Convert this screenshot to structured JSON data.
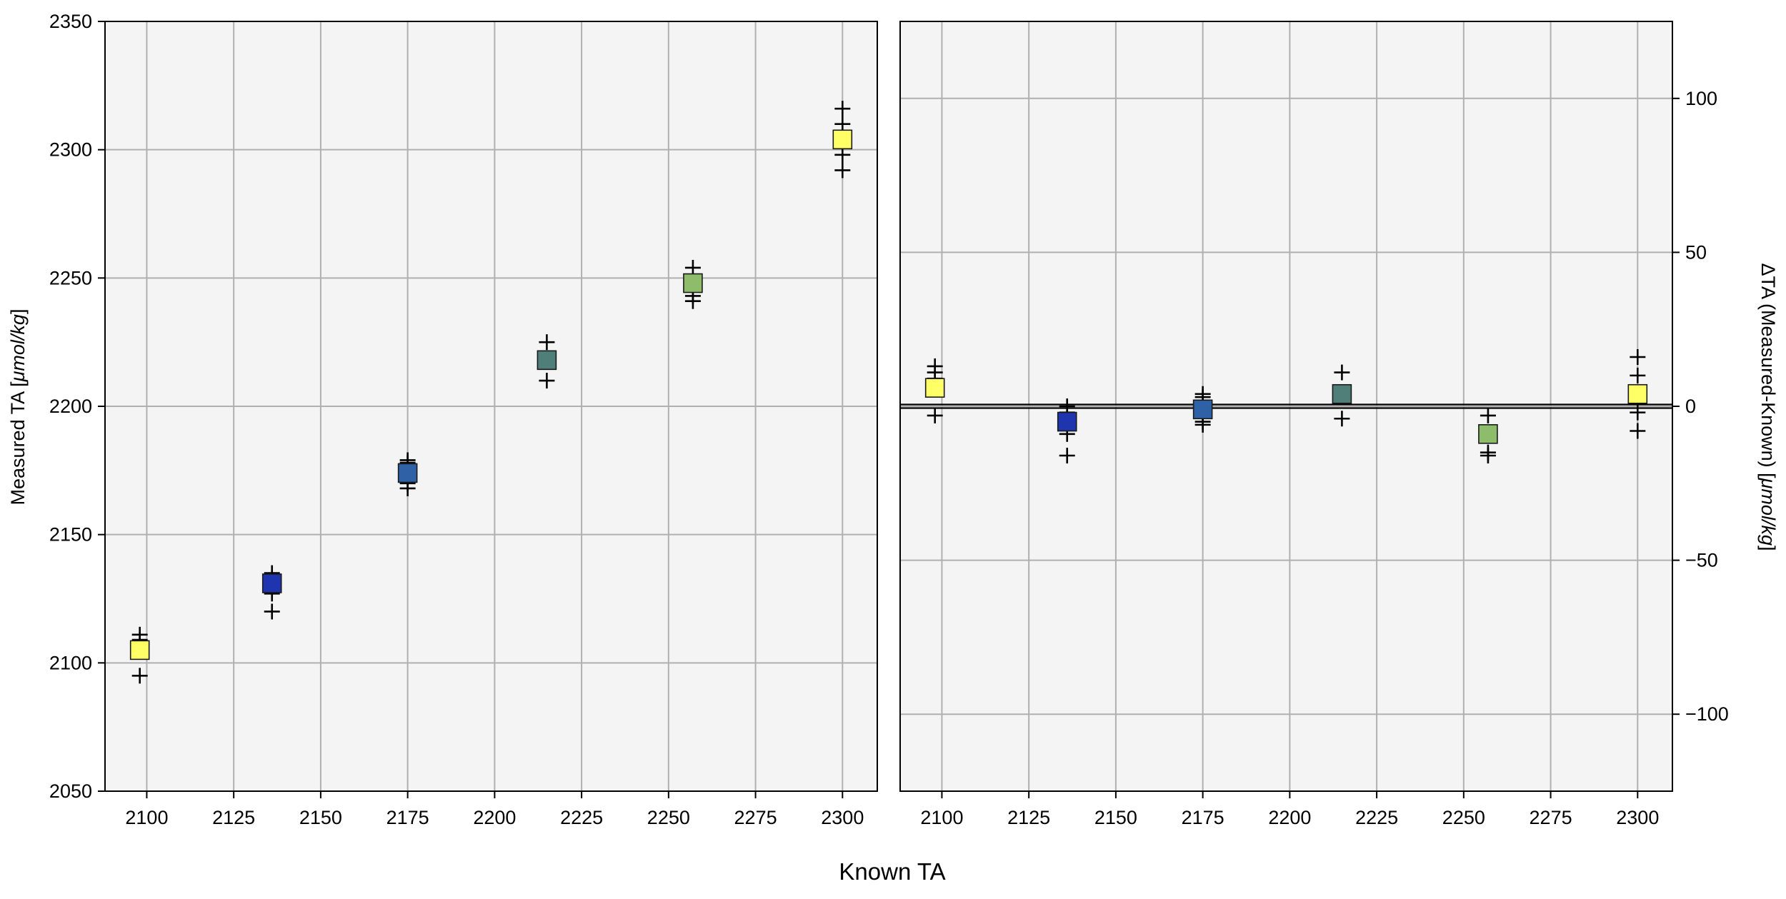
{
  "figure": {
    "xlabel": "Known TA"
  },
  "colors": {
    "panel_background": "#f4f4f4",
    "grid": "#b0b0b0",
    "frame": "#000000",
    "zero_line": "#000000"
  },
  "chart_data": [
    {
      "type": "scatter",
      "panel": "left",
      "title": "",
      "xlabel": "",
      "ylabel": "Measured TA [μmol/kg]",
      "ylabel_plain": "Measured TA [",
      "ylabel_unit": "μmol/kg",
      "ylabel_end": "]",
      "xlim": [
        2088,
        2310
      ],
      "ylim": [
        2050,
        2350
      ],
      "xticks": [
        2100,
        2125,
        2150,
        2175,
        2200,
        2225,
        2250,
        2275,
        2300
      ],
      "yticks": [
        2050,
        2100,
        2150,
        2200,
        2250,
        2300,
        2350
      ],
      "grid": true,
      "legend": "none",
      "series": [
        {
          "type": "mean",
          "marker": "square",
          "points": [
            {
              "x": 2098,
              "y": 2105,
              "color": "#ffff66"
            },
            {
              "x": 2136,
              "y": 2131,
              "color": "#1f35b0"
            },
            {
              "x": 2175,
              "y": 2174,
              "color": "#2e61a6"
            },
            {
              "x": 2215,
              "y": 2218,
              "color": "#4f7f78"
            },
            {
              "x": 2257,
              "y": 2248,
              "color": "#8dbc6a"
            },
            {
              "x": 2300,
              "y": 2304,
              "color": "#ffff66"
            }
          ]
        },
        {
          "type": "replicates",
          "marker": "plus",
          "points": [
            {
              "x": 2098,
              "y": 2111
            },
            {
              "x": 2098,
              "y": 2109
            },
            {
              "x": 2098,
              "y": 2107
            },
            {
              "x": 2098,
              "y": 2095
            },
            {
              "x": 2136,
              "y": 2135
            },
            {
              "x": 2136,
              "y": 2133
            },
            {
              "x": 2136,
              "y": 2127
            },
            {
              "x": 2136,
              "y": 2120
            },
            {
              "x": 2175,
              "y": 2179
            },
            {
              "x": 2175,
              "y": 2178
            },
            {
              "x": 2175,
              "y": 2170
            },
            {
              "x": 2175,
              "y": 2168
            },
            {
              "x": 2215,
              "y": 2225
            },
            {
              "x": 2215,
              "y": 2210
            },
            {
              "x": 2257,
              "y": 2254
            },
            {
              "x": 2257,
              "y": 2243
            },
            {
              "x": 2257,
              "y": 2241
            },
            {
              "x": 2300,
              "y": 2316
            },
            {
              "x": 2300,
              "y": 2310
            },
            {
              "x": 2300,
              "y": 2298
            },
            {
              "x": 2300,
              "y": 2292
            }
          ]
        }
      ]
    },
    {
      "type": "scatter",
      "panel": "right",
      "title": "",
      "xlabel": "",
      "ylabel": "ΔTA (Measured-Known) [μmol/kg]",
      "ylabel_plain": "ΔTA (Measured-Known) [",
      "ylabel_unit": "μmol/kg",
      "ylabel_end": "]",
      "xlim": [
        2088,
        2310
      ],
      "ylim": [
        -125,
        125
      ],
      "xticks": [
        2100,
        2125,
        2150,
        2175,
        2200,
        2225,
        2250,
        2275,
        2300
      ],
      "yticks": [
        -100,
        -50,
        0,
        50,
        100
      ],
      "ytick_labels": [
        "−100",
        "−50",
        "0",
        "50",
        "100"
      ],
      "hline": 0,
      "grid": true,
      "legend": "none",
      "series": [
        {
          "type": "mean",
          "marker": "square",
          "points": [
            {
              "x": 2098,
              "y": 6,
              "color": "#ffff66"
            },
            {
              "x": 2136,
              "y": -5,
              "color": "#1f35b0"
            },
            {
              "x": 2175,
              "y": -1,
              "color": "#2e61a6"
            },
            {
              "x": 2215,
              "y": 4,
              "color": "#4f7f78"
            },
            {
              "x": 2257,
              "y": -9,
              "color": "#8dbc6a"
            },
            {
              "x": 2300,
              "y": 4,
              "color": "#ffff66"
            }
          ]
        },
        {
          "type": "replicates",
          "marker": "plus",
          "points": [
            {
              "x": 2098,
              "y": 13
            },
            {
              "x": 2098,
              "y": 11
            },
            {
              "x": 2098,
              "y": 9
            },
            {
              "x": 2098,
              "y": -3
            },
            {
              "x": 2136,
              "y": 0
            },
            {
              "x": 2136,
              "y": -2
            },
            {
              "x": 2136,
              "y": -9
            },
            {
              "x": 2136,
              "y": -16
            },
            {
              "x": 2175,
              "y": 4
            },
            {
              "x": 2175,
              "y": 3
            },
            {
              "x": 2175,
              "y": -5
            },
            {
              "x": 2175,
              "y": -6
            },
            {
              "x": 2215,
              "y": 11
            },
            {
              "x": 2215,
              "y": -4
            },
            {
              "x": 2257,
              "y": -3
            },
            {
              "x": 2257,
              "y": -15
            },
            {
              "x": 2257,
              "y": -16
            },
            {
              "x": 2300,
              "y": 16
            },
            {
              "x": 2300,
              "y": 10
            },
            {
              "x": 2300,
              "y": -2
            },
            {
              "x": 2300,
              "y": -8
            }
          ]
        }
      ]
    }
  ]
}
